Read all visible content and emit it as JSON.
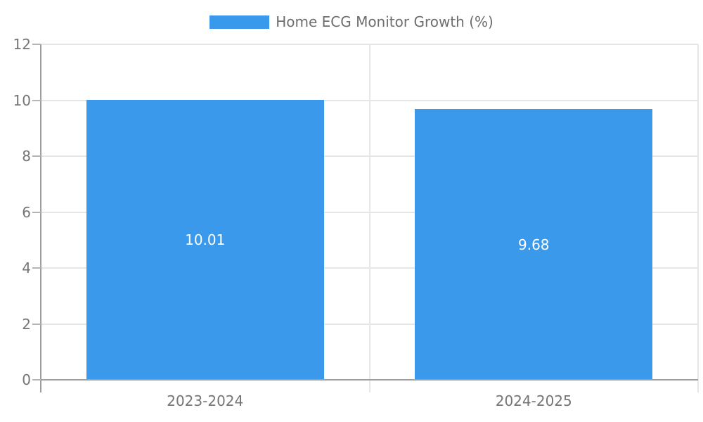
{
  "chart_data": {
    "type": "bar",
    "title": "Home ECG Monitor Growth (%)",
    "categories": [
      "2023-2024",
      "2024-2025"
    ],
    "values": [
      10.01,
      9.68
    ],
    "value_labels": [
      "10.01",
      "9.68"
    ],
    "xlabel": "",
    "ylabel": "",
    "ylim": [
      0,
      12
    ],
    "yticks": [
      0,
      2,
      4,
      6,
      8,
      10,
      12
    ],
    "ytick_labels": [
      "0",
      "2",
      "4",
      "6",
      "8",
      "10",
      "12"
    ],
    "grid": true,
    "legend_position": "top-center"
  },
  "colors": {
    "bar": "#3b99ec",
    "grid_line": "#e6e6e6",
    "axis_line": "#9e9e9e",
    "tick_mark": "#b4b4b4",
    "tick_text": "#757575",
    "title_text": "#6e6e6e",
    "bar_label": "#ffffff",
    "background": "#ffffff"
  }
}
